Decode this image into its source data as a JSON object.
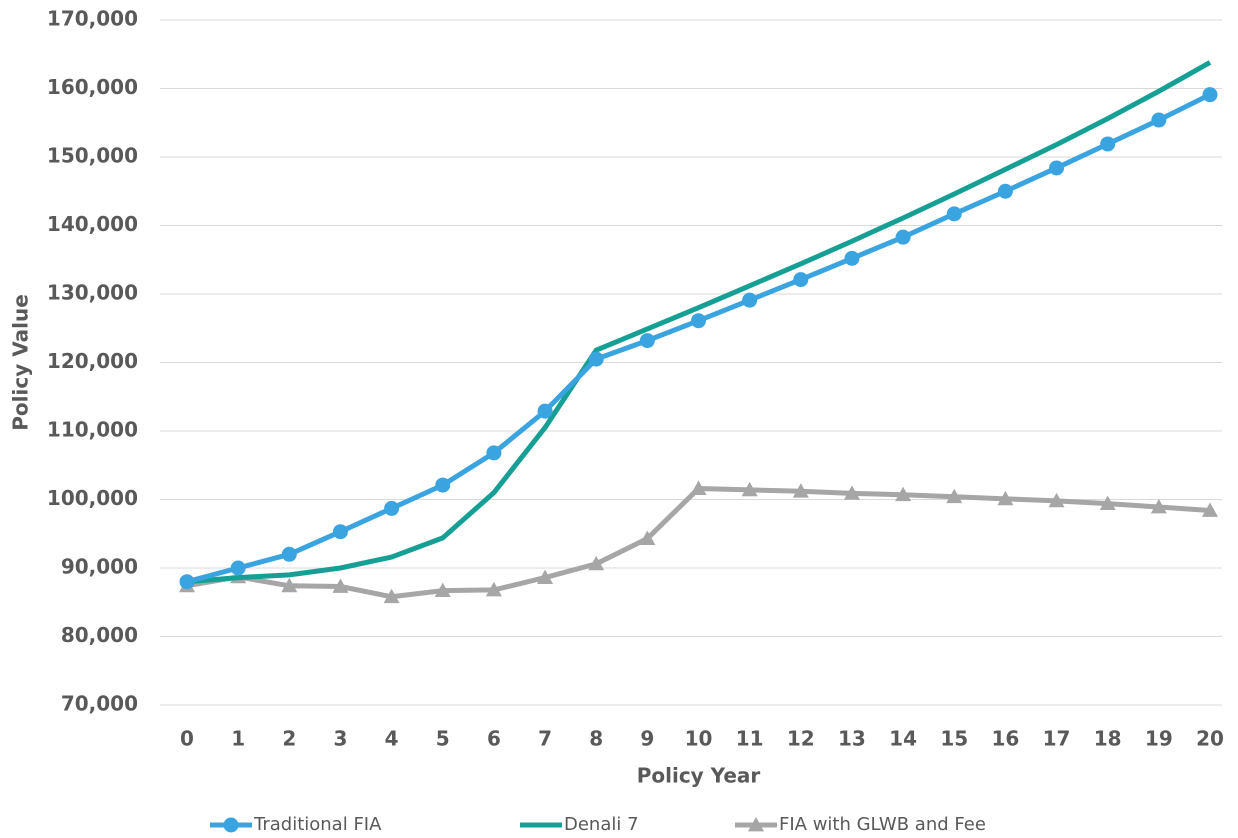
{
  "chart_data": {
    "type": "line",
    "title": "",
    "xlabel": "Policy Year",
    "ylabel": "Policy Value",
    "ylim": [
      70000,
      170000
    ],
    "y_ticks": [
      "70,000",
      "80,000",
      "90,000",
      "100,000",
      "110,000",
      "120,000",
      "130,000",
      "140,000",
      "150,000",
      "160,000",
      "170,000"
    ],
    "y_tick_values": [
      70000,
      80000,
      90000,
      100000,
      110000,
      120000,
      130000,
      140000,
      150000,
      160000,
      170000
    ],
    "x": [
      0,
      1,
      2,
      3,
      4,
      5,
      6,
      7,
      8,
      9,
      10,
      11,
      12,
      13,
      14,
      15,
      16,
      17,
      18,
      19,
      20
    ],
    "x_tick_labels": [
      "0",
      "1",
      "2",
      "3",
      "4",
      "5",
      "6",
      "7",
      "8",
      "9",
      "10",
      "11",
      "12",
      "13",
      "14",
      "15",
      "16",
      "17",
      "18",
      "19",
      "20"
    ],
    "grid": true,
    "legend_position": "bottom",
    "series": [
      {
        "name": "Traditional FIA",
        "color": "#3aa4e0",
        "marker": "circle",
        "values": [
          88000,
          90000,
          92000,
          95300,
          98700,
          102100,
          106800,
          112900,
          120500,
          123200,
          126100,
          129100,
          132100,
          135200,
          138300,
          141700,
          145000,
          148400,
          151900,
          155400,
          159100
        ]
      },
      {
        "name": "Denali 7",
        "color": "#16a095",
        "marker": "none",
        "values": [
          88000,
          88600,
          89000,
          90000,
          91600,
          94400,
          101000,
          110500,
          121800,
          124900,
          128000,
          131200,
          134400,
          137700,
          141100,
          144600,
          148200,
          151800,
          155600,
          159600,
          163800
        ]
      },
      {
        "name": "FIA with GLWB and Fee",
        "color": "#a6a6a6",
        "marker": "triangle",
        "values": [
          87400,
          88700,
          87400,
          87300,
          85800,
          86700,
          86800,
          88600,
          90600,
          94300,
          101600,
          101400,
          101200,
          100900,
          100700,
          100400,
          100100,
          99800,
          99400,
          98900,
          98400
        ]
      }
    ]
  }
}
